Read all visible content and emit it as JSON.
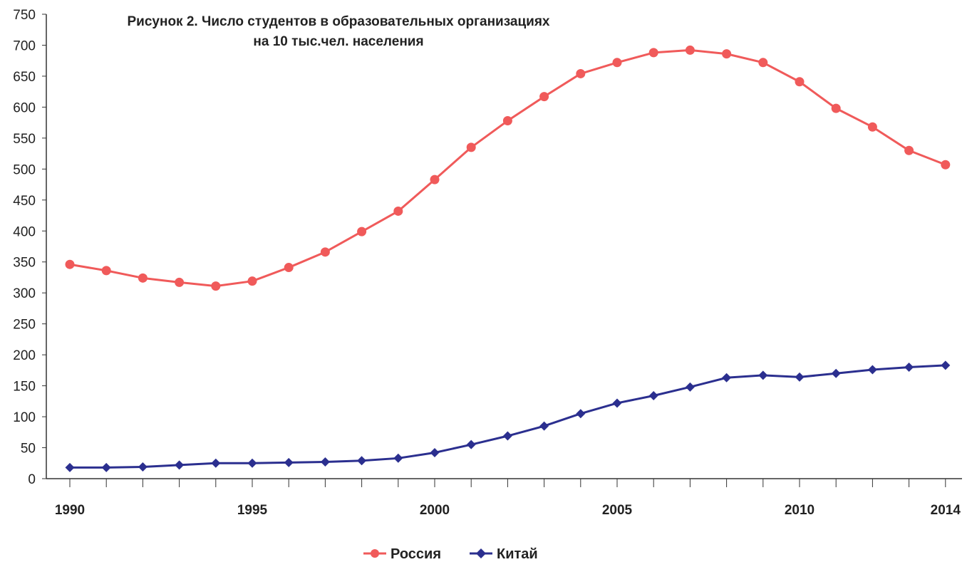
{
  "chart_data": {
    "type": "line",
    "title_line1": "Рисунок 2. Число студентов в образовательных организациях",
    "title_line2": "на 10 тыс.чел. населения",
    "xlabel": "",
    "ylabel": "",
    "x": [
      1990,
      1991,
      1992,
      1993,
      1994,
      1995,
      1996,
      1997,
      1998,
      1999,
      2000,
      2001,
      2002,
      2003,
      2004,
      2005,
      2006,
      2007,
      2008,
      2009,
      2010,
      2011,
      2012,
      2013,
      2014
    ],
    "x_tick_labels": [
      "1990",
      "1995",
      "2000",
      "2005",
      "2010",
      "2014"
    ],
    "y_tick_labels": [
      "0",
      "50",
      "100",
      "150",
      "200",
      "250",
      "300",
      "350",
      "400",
      "450",
      "500",
      "550",
      "600",
      "650",
      "700",
      "750"
    ],
    "ylim": [
      0,
      750
    ],
    "grid": false,
    "legend_position": "bottom",
    "series": [
      {
        "name": "Россия",
        "color": "#f05a5a",
        "marker": "circle",
        "values": [
          346,
          336,
          324,
          317,
          311,
          319,
          341,
          366,
          399,
          432,
          483,
          535,
          578,
          617,
          654,
          672,
          688,
          692,
          686,
          672,
          641,
          598,
          568,
          530,
          507
        ]
      },
      {
        "name": "Китай",
        "color": "#2b2f8f",
        "marker": "diamond",
        "values": [
          18,
          18,
          19,
          22,
          25,
          25,
          26,
          27,
          29,
          33,
          42,
          55,
          69,
          85,
          105,
          122,
          134,
          148,
          163,
          167,
          164,
          170,
          176,
          180,
          183
        ]
      }
    ]
  }
}
